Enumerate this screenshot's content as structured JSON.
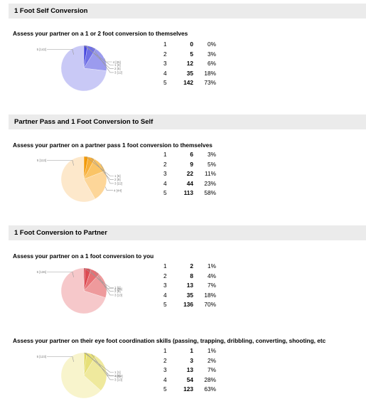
{
  "sections": [
    {
      "header": "1 Foot Self Conversion",
      "question": "Assess your partner on a 1 or 2 foot conversion to themselves",
      "chart_data": {
        "type": "pie",
        "categories": [
          "1",
          "2",
          "3",
          "4",
          "5"
        ],
        "values": [
          0,
          5,
          12,
          35,
          142
        ],
        "percents": [
          "0%",
          "3%",
          "6%",
          "18%",
          "73%"
        ],
        "slice_labels": [
          "1 [0]",
          "2 [5]",
          "3 [12]",
          "4 [35]",
          "5 [142]"
        ],
        "colors": [
          "#2a2acf",
          "#4646dd",
          "#6f6fe6",
          "#9b9bee",
          "#c9c9f6"
        ]
      }
    },
    {
      "header": "Partner Pass and 1 Foot Conversion to Self",
      "question": "Assess your partner on a partner pass 1 foot conversion to themselves",
      "chart_data": {
        "type": "pie",
        "categories": [
          "1",
          "2",
          "3",
          "4",
          "5"
        ],
        "values": [
          6,
          9,
          22,
          44,
          113
        ],
        "percents": [
          "3%",
          "5%",
          "11%",
          "23%",
          "58%"
        ],
        "slice_labels": [
          "1 [6]",
          "2 [9]",
          "3 [22]",
          "4 [44]",
          "5 [113]"
        ],
        "colors": [
          "#f29a0a",
          "#f7ae35",
          "#fac466",
          "#fdd699",
          "#fde8cb"
        ]
      }
    },
    {
      "header": "1 Foot Conversion to Partner",
      "question": "Assess your partner on a 1 foot conversion to you",
      "chart_data": {
        "type": "pie",
        "categories": [
          "1",
          "2",
          "3",
          "4",
          "5"
        ],
        "values": [
          2,
          8,
          13,
          35,
          136
        ],
        "percents": [
          "1%",
          "4%",
          "7%",
          "18%",
          "70%"
        ],
        "slice_labels": [
          "1 [2]",
          "2 [8]",
          "3 [13]",
          "4 [35]",
          "5 [136]"
        ],
        "colors": [
          "#cf1f2c",
          "#dc4a52",
          "#e76f73",
          "#ee9a9c",
          "#f6c8ca"
        ]
      }
    },
    {
      "header": "",
      "question": "Assess your partner on their eye foot coordination skills (passing, trapping, dribbling, converting, shooting, etc",
      "chart_data": {
        "type": "pie",
        "categories": [
          "1",
          "2",
          "3",
          "4",
          "5"
        ],
        "values": [
          1,
          3,
          13,
          54,
          123
        ],
        "percents": [
          "1%",
          "2%",
          "7%",
          "28%",
          "63%"
        ],
        "slice_labels": [
          "1 [1]",
          "2 [3]",
          "3 [13]",
          "4 [54]",
          "5 [123]"
        ],
        "colors": [
          "#d6cc33",
          "#dfd653",
          "#e7e078",
          "#efe99d",
          "#f8f4cc"
        ]
      }
    }
  ]
}
